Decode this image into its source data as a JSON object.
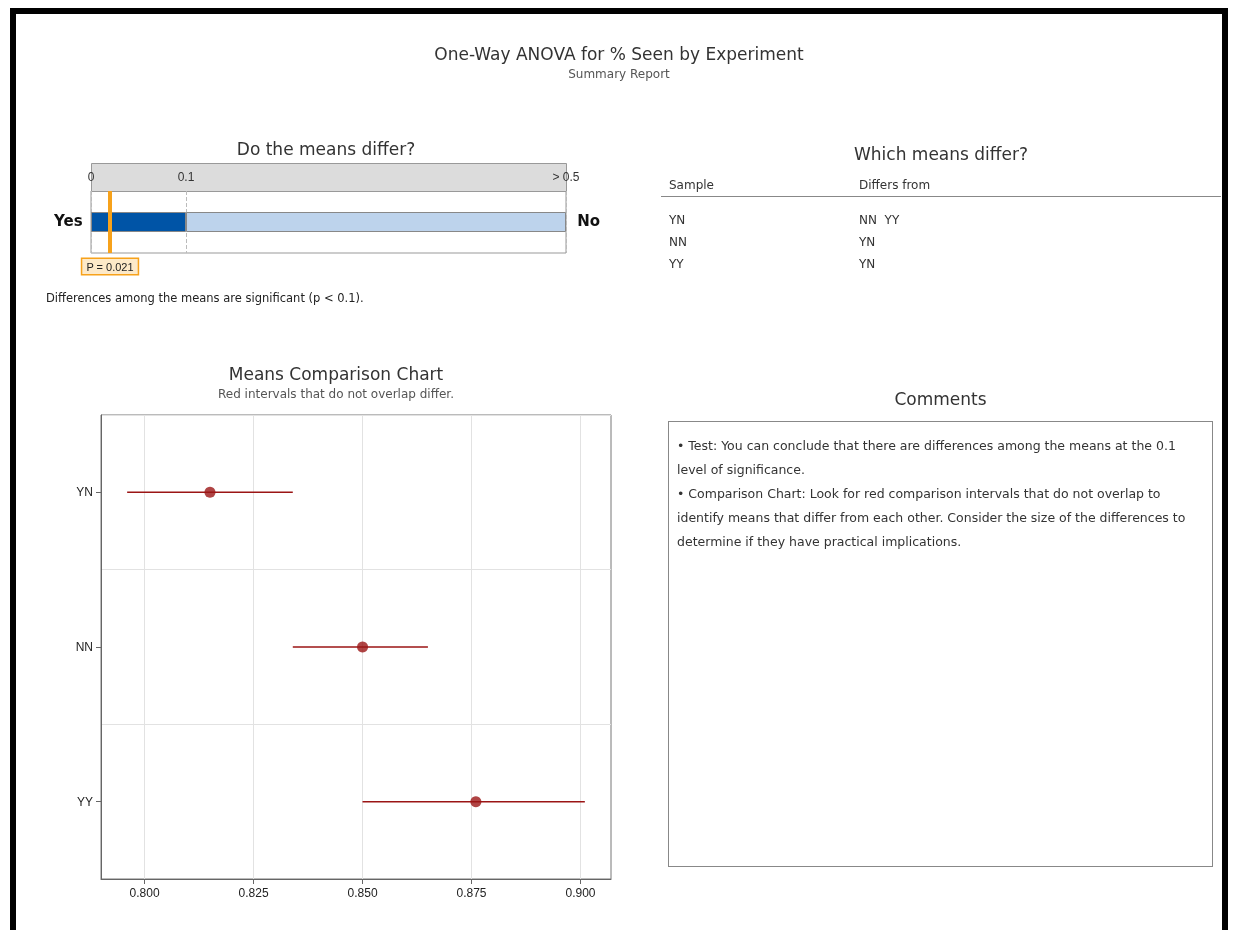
{
  "chart_data": [
    {
      "type": "other",
      "title": "One-Way ANOVA for % Seen by Experiment",
      "subtitle": "Summary Report"
    },
    {
      "type": "bar",
      "title": "Do the means differ?",
      "orientation": "horizontal",
      "stacked": true,
      "categories": [
        null
      ],
      "xlim": [
        0,
        0.5
      ],
      "xticks": [
        0,
        0.1,
        {
          "value": 0.5,
          "label": "> 0.5"
        }
      ],
      "grid": "x",
      "series": [
        {
          "color": "#0054a6",
          "values": [
            0.1
          ]
        },
        {
          "color": "#bdd3ec",
          "values": [
            0.4
          ]
        }
      ],
      "ref_lines": [
        {
          "axis": "x",
          "value": 0.021,
          "label": "P = 0.021",
          "color": "#f7a21b"
        }
      ],
      "annotations": [
        "Yes",
        "No",
        "Differences among the means are significant (p < 0.1)."
      ]
    },
    {
      "type": "other",
      "title": "Which means differ?",
      "annotations": [
        "Sample",
        "Differs from",
        "YN",
        "NN  YY",
        "NN",
        "YN",
        "YY",
        "YN"
      ]
    },
    {
      "type": "scatter",
      "title": "Means Comparison Chart",
      "subtitle": "Red intervals that do not overlap differ.",
      "orientation": "horizontal",
      "categories": [
        "YN",
        "NN",
        "YY"
      ],
      "values": [
        0.815,
        0.85,
        0.876
      ],
      "errors": [
        [
          0.796,
          0.834
        ],
        [
          0.834,
          0.865
        ],
        [
          0.85,
          0.901
        ]
      ],
      "color": "#9b1515",
      "marker": "circle",
      "grid": true,
      "xlim": [
        0.79,
        0.907
      ],
      "xticks": [
        {
          "value": 0.8,
          "label": "0.800"
        },
        {
          "value": 0.825,
          "label": "0.825"
        },
        {
          "value": 0.85,
          "label": "0.850"
        },
        {
          "value": 0.875,
          "label": "0.875"
        },
        {
          "value": 0.9,
          "label": "0.900"
        }
      ]
    },
    {
      "type": "other",
      "title": "Comments",
      "annotations": [
        "• Test: You can conclude that there are differences among the means at the 0.1 level of significance.",
        "• Comparison Chart: Look for red comparison intervals that do not overlap to identify means that differ from each other. Consider the size of the differences to determine if they have practical implications."
      ]
    }
  ]
}
